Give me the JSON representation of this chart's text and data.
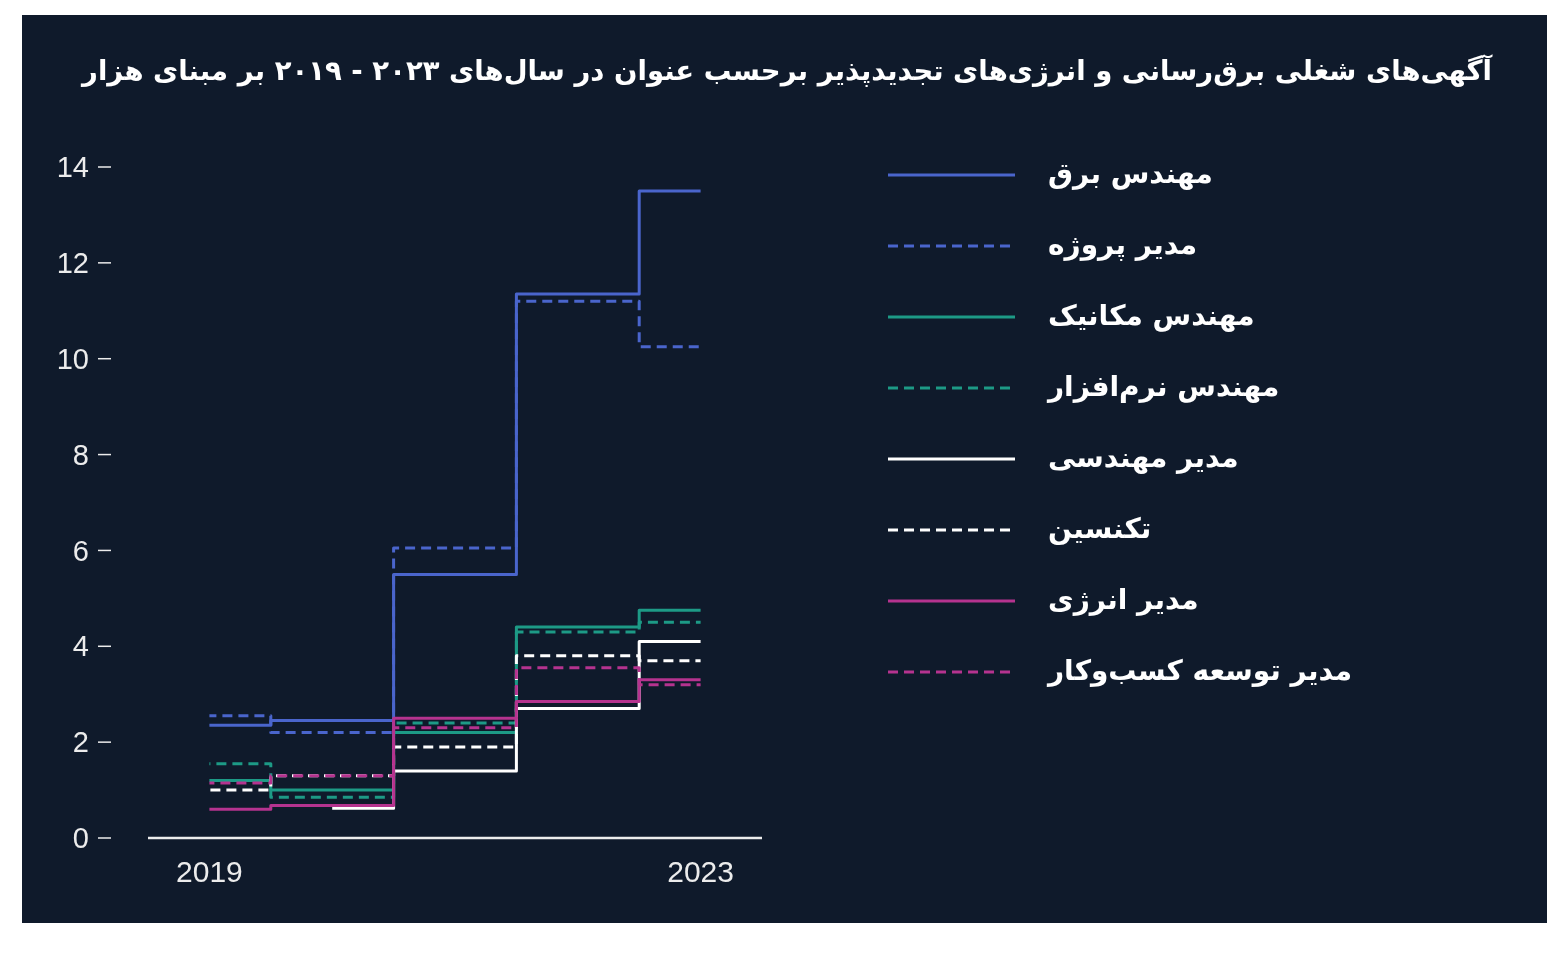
{
  "chart_data": {
    "type": "step",
    "title": "آگهی‌های شغلی برق‌رسانی و انرژی‌های تجدیدپذیر برحسب عنوان در سال‌های ۲۰۲۳ - ۲۰۱۹ بر مبنای هزار",
    "categories": [
      "2019",
      null,
      null,
      null,
      "2023"
    ],
    "ylim": [
      0,
      14
    ],
    "yticks": [
      0,
      2,
      4,
      6,
      8,
      10,
      12,
      14
    ],
    "legend": "right",
    "series": [
      {
        "name": "مهندس برق",
        "color": "#4a65cc",
        "line_style": "solid",
        "values": [
          2.35,
          2.45,
          5.5,
          11.35,
          13.5
        ]
      },
      {
        "name": "مدیر پروژه",
        "color": "#4a65cc",
        "line_style": "dashed",
        "values": [
          2.55,
          2.2,
          6.05,
          11.2,
          10.25
        ]
      },
      {
        "name": "مهندس مکانیک",
        "color": "#1d9a86",
        "line_style": "solid",
        "values": [
          1.2,
          1.0,
          2.2,
          4.4,
          4.75
        ]
      },
      {
        "name": "مهندس نرم‌افزار",
        "color": "#1d9a86",
        "line_style": "dashed",
        "values": [
          1.55,
          0.85,
          2.4,
          4.3,
          4.5
        ]
      },
      {
        "name": "مدیر مهندسی",
        "color": "#ffffff",
        "line_style": "solid",
        "values": [
          null,
          0.62,
          1.4,
          2.7,
          4.1
        ]
      },
      {
        "name": "تکنسین",
        "color": "#ffffff",
        "line_style": "dashed",
        "values": [
          1.0,
          1.3,
          1.9,
          3.8,
          3.7
        ]
      },
      {
        "name": "مدیر انرژی",
        "color": "#b5338f",
        "line_style": "solid",
        "values": [
          0.6,
          0.68,
          2.5,
          2.85,
          3.3
        ]
      },
      {
        "name": "مدیر توسعه کسب‌وکار",
        "color": "#b5338f",
        "line_style": "dashed",
        "values": [
          1.15,
          1.3,
          2.3,
          3.55,
          3.2
        ]
      }
    ]
  }
}
